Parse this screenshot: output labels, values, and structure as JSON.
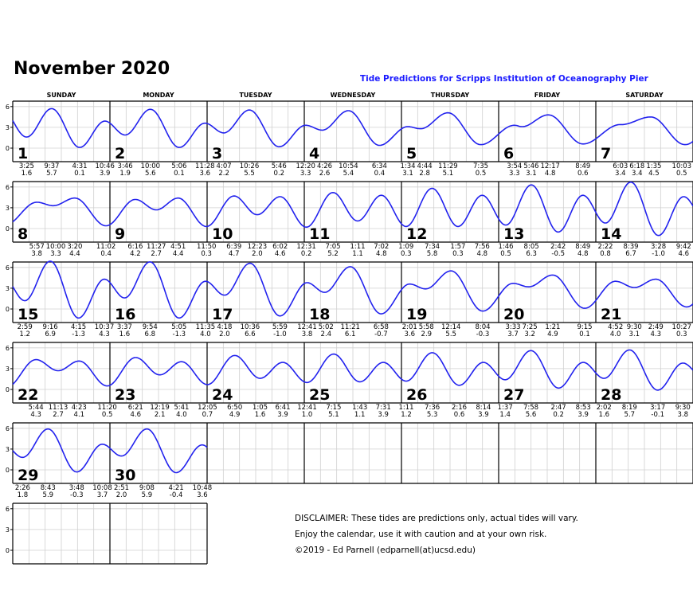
{
  "header": {
    "title": "November 2020",
    "subtitle": "Tide Predictions for Scripps Institution of Oceanography Pier"
  },
  "weekdays": [
    "SUNDAY",
    "MONDAY",
    "TUESDAY",
    "WEDNESDAY",
    "THURSDAY",
    "FRIDAY",
    "SATURDAY"
  ],
  "disclaimer": [
    "DISCLAIMER: These tides are predictions only, actual tides will vary.",
    "Enjoy the calendar, use it with caution and at your own risk.",
    "©2019 - Ed Parnell (edparnell(at)ucsd.edu)"
  ],
  "chart_data": {
    "type": "line",
    "title": "November 2020",
    "ylabel": "",
    "yticks": [
      "6",
      "3",
      "0"
    ],
    "ylim": [
      -2,
      7.2
    ],
    "grid": true,
    "line_color": "#2222ee",
    "days": [
      {
        "day": "1",
        "tides": [
          [
            "3:25",
            "1.6"
          ],
          [
            "9:37",
            "5.7"
          ],
          [
            "4:31",
            "0.1"
          ],
          [
            "10:46",
            "3.9"
          ]
        ]
      },
      {
        "day": "2",
        "tides": [
          [
            "3:46",
            "1.9"
          ],
          [
            "10:00",
            "5.6"
          ],
          [
            "5:06",
            "0.1"
          ],
          [
            "11:28",
            "3.6"
          ]
        ]
      },
      {
        "day": "3",
        "tides": [
          [
            "4:07",
            "2.2"
          ],
          [
            "10:26",
            "5.5"
          ],
          [
            "5:46",
            "0.2"
          ]
        ]
      },
      {
        "day": "4",
        "tides": [
          [
            "12:20",
            "3.3"
          ],
          [
            "4:26",
            "2.6"
          ],
          [
            "10:54",
            "5.4"
          ],
          [
            "6:34",
            "0.4"
          ]
        ]
      },
      {
        "day": "5",
        "tides": [
          [
            "1:34",
            "3.1"
          ],
          [
            "4:44",
            "2.8"
          ],
          [
            "11:29",
            "5.1"
          ],
          [
            "7:35",
            "0.5"
          ]
        ]
      },
      {
        "day": "6",
        "tides": [
          [
            "3:54",
            "3.3"
          ],
          [
            "5:46",
            "3.1"
          ],
          [
            "12:17",
            "4.8"
          ],
          [
            "8:49",
            "0.6"
          ]
        ]
      },
      {
        "day": "7",
        "tides": [
          [
            "6:03",
            "3.4"
          ],
          [
            "6:18",
            "3.4"
          ],
          [
            "1:35",
            "4.5"
          ],
          [
            "10:03",
            "0.5"
          ]
        ]
      },
      {
        "day": "8",
        "tides": [
          [
            "5:57",
            "3.8"
          ],
          [
            "10:00",
            "3.3"
          ],
          [
            "3:20",
            "4.4"
          ],
          [
            "11:02",
            "0.4"
          ]
        ]
      },
      {
        "day": "9",
        "tides": [
          [
            "6:16",
            "4.2"
          ],
          [
            "11:27",
            "2.7"
          ],
          [
            "4:51",
            "4.4"
          ],
          [
            "11:50",
            "0.3"
          ]
        ]
      },
      {
        "day": "10",
        "tides": [
          [
            "6:39",
            "4.7"
          ],
          [
            "12:23",
            "2.0"
          ],
          [
            "6:02",
            "4.6"
          ]
        ]
      },
      {
        "day": "11",
        "tides": [
          [
            "12:31",
            "0.2"
          ],
          [
            "7:05",
            "5.2"
          ],
          [
            "1:11",
            "1.1"
          ],
          [
            "7:02",
            "4.8"
          ]
        ]
      },
      {
        "day": "12",
        "tides": [
          [
            "1:09",
            "0.3"
          ],
          [
            "7:34",
            "5.8"
          ],
          [
            "1:57",
            "0.3"
          ],
          [
            "7:56",
            "4.8"
          ]
        ]
      },
      {
        "day": "13",
        "tides": [
          [
            "1:46",
            "0.5"
          ],
          [
            "8:05",
            "6.3"
          ],
          [
            "2:42",
            "-0.5"
          ],
          [
            "8:49",
            "4.8"
          ]
        ]
      },
      {
        "day": "14",
        "tides": [
          [
            "2:22",
            "0.8"
          ],
          [
            "8:39",
            "6.7"
          ],
          [
            "3:28",
            "-1.0"
          ],
          [
            "9:42",
            "4.6"
          ]
        ]
      },
      {
        "day": "15",
        "tides": [
          [
            "2:59",
            "1.2"
          ],
          [
            "9:16",
            "6.9"
          ],
          [
            "4:15",
            "-1.3"
          ],
          [
            "10:37",
            "4.3"
          ]
        ]
      },
      {
        "day": "16",
        "tides": [
          [
            "3:37",
            "1.6"
          ],
          [
            "9:54",
            "6.8"
          ],
          [
            "5:05",
            "-1.3"
          ],
          [
            "11:35",
            "4.0"
          ]
        ]
      },
      {
        "day": "17",
        "tides": [
          [
            "4:18",
            "2.0"
          ],
          [
            "10:36",
            "6.6"
          ],
          [
            "5:59",
            "-1.0"
          ]
        ]
      },
      {
        "day": "18",
        "tides": [
          [
            "12:41",
            "3.8"
          ],
          [
            "5:02",
            "2.4"
          ],
          [
            "11:21",
            "6.1"
          ],
          [
            "6:58",
            "-0.7"
          ]
        ]
      },
      {
        "day": "19",
        "tides": [
          [
            "2:01",
            "3.6"
          ],
          [
            "5:58",
            "2.9"
          ],
          [
            "12:14",
            "5.5"
          ],
          [
            "8:04",
            "-0.3"
          ]
        ]
      },
      {
        "day": "20",
        "tides": [
          [
            "3:33",
            "3.7"
          ],
          [
            "7:25",
            "3.2"
          ],
          [
            "1:21",
            "4.9"
          ],
          [
            "9:15",
            "0.1"
          ]
        ]
      },
      {
        "day": "21",
        "tides": [
          [
            "4:52",
            "4.0"
          ],
          [
            "9:30",
            "3.1"
          ],
          [
            "2:49",
            "4.3"
          ],
          [
            "10:27",
            "0.3"
          ]
        ]
      },
      {
        "day": "22",
        "tides": [
          [
            "5:44",
            "4.3"
          ],
          [
            "11:13",
            "2.7"
          ],
          [
            "4:23",
            "4.1"
          ],
          [
            "11:20",
            "0.5"
          ]
        ]
      },
      {
        "day": "23",
        "tides": [
          [
            "6:21",
            "4.6"
          ],
          [
            "12:19",
            "2.1"
          ],
          [
            "5:41",
            "4.0"
          ]
        ]
      },
      {
        "day": "24",
        "tides": [
          [
            "12:05",
            "0.7"
          ],
          [
            "6:50",
            "4.9"
          ],
          [
            "1:05",
            "1.6"
          ],
          [
            "6:41",
            "3.9"
          ]
        ]
      },
      {
        "day": "25",
        "tides": [
          [
            "12:41",
            "1.0"
          ],
          [
            "7:15",
            "5.1"
          ],
          [
            "1:43",
            "1.1"
          ],
          [
            "7:31",
            "3.9"
          ]
        ]
      },
      {
        "day": "26",
        "tides": [
          [
            "1:11",
            "1.2"
          ],
          [
            "7:36",
            "5.3"
          ],
          [
            "2:16",
            "0.6"
          ],
          [
            "8:14",
            "3.9"
          ]
        ]
      },
      {
        "day": "27",
        "tides": [
          [
            "1:37",
            "1.4"
          ],
          [
            "7:58",
            "5.6"
          ],
          [
            "2:47",
            "0.2"
          ],
          [
            "8:53",
            "3.9"
          ]
        ]
      },
      {
        "day": "28",
        "tides": [
          [
            "2:02",
            "1.6"
          ],
          [
            "8:19",
            "5.7"
          ],
          [
            "3:17",
            "-0.1"
          ],
          [
            "9:30",
            "3.8"
          ]
        ]
      },
      {
        "day": "29",
        "tides": [
          [
            "2:26",
            "1.8"
          ],
          [
            "8:43",
            "5.9"
          ],
          [
            "3:48",
            "-0.3"
          ],
          [
            "10:08",
            "3.7"
          ]
        ]
      },
      {
        "day": "30",
        "tides": [
          [
            "2:51",
            "2.0"
          ],
          [
            "9:08",
            "5.9"
          ],
          [
            "4:21",
            "-0.4"
          ],
          [
            "10:48",
            "3.6"
          ]
        ]
      }
    ]
  }
}
